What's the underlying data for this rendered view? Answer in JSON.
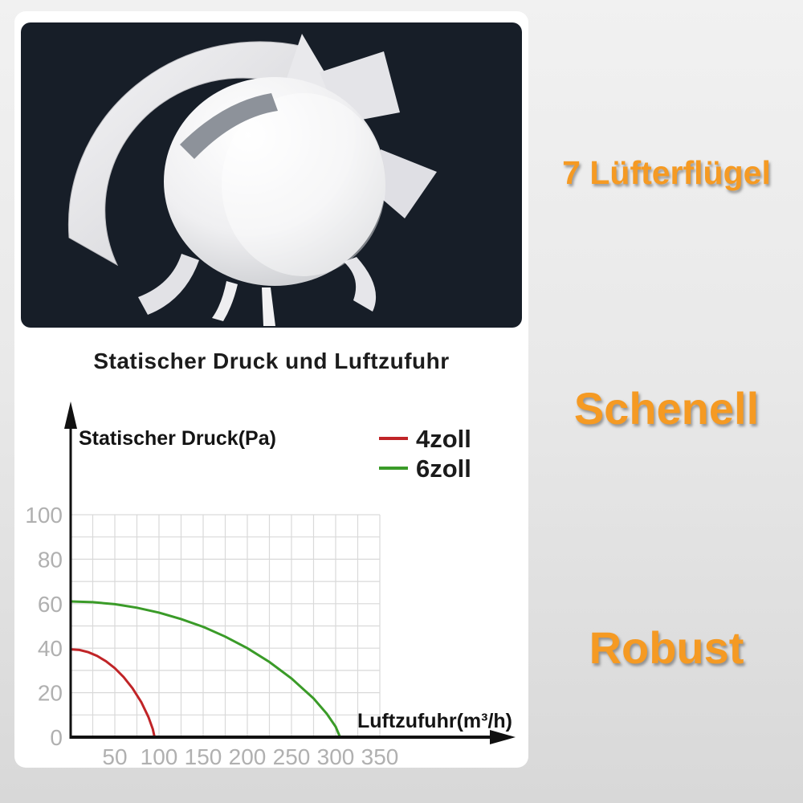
{
  "hero": {
    "panel_color": "#171e28",
    "illustration": "fan-impeller-3d-render"
  },
  "features": [
    {
      "label": "7 Lüfterflügel"
    },
    {
      "label": "Schenell"
    },
    {
      "label": "Robust"
    }
  ],
  "accent_color": "#f59a23",
  "chart_data": {
    "type": "line",
    "title": "Statischer Druck und Luftzufuhr",
    "xlabel": "Luftzufuhr(m³/h)",
    "ylabel": "Statischer Druck(Pa)",
    "xlim": [
      0,
      362
    ],
    "ylim": [
      0,
      100
    ],
    "x_ticks": [
      50,
      100,
      150,
      200,
      250,
      300,
      350
    ],
    "y_ticks": [
      0,
      20,
      40,
      60,
      80,
      100
    ],
    "grid": {
      "x_step": 25,
      "y_step": 10,
      "x_max": 350,
      "y_max": 100,
      "color": "#d9d9d9"
    },
    "legend_position": "top-right",
    "axis_color": "#111111",
    "tick_color": "#b0b0b0",
    "series": [
      {
        "name": "4zoll",
        "color": "#c02427",
        "points": [
          [
            0,
            39.5
          ],
          [
            10,
            39.2
          ],
          [
            20,
            38.2
          ],
          [
            30,
            36.5
          ],
          [
            40,
            34.1
          ],
          [
            50,
            31.0
          ],
          [
            60,
            27.0
          ],
          [
            70,
            22.0
          ],
          [
            80,
            15.7
          ],
          [
            88,
            9.1
          ],
          [
            93,
            3.6
          ],
          [
            95,
            0
          ]
        ]
      },
      {
        "name": "6zoll",
        "color": "#3a9b28",
        "points": [
          [
            0,
            61
          ],
          [
            25,
            60.7
          ],
          [
            50,
            59.8
          ],
          [
            75,
            58.2
          ],
          [
            100,
            56.0
          ],
          [
            125,
            53.1
          ],
          [
            150,
            49.6
          ],
          [
            175,
            45.2
          ],
          [
            200,
            40.0
          ],
          [
            225,
            33.8
          ],
          [
            250,
            26.4
          ],
          [
            275,
            17.4
          ],
          [
            290,
            10.5
          ],
          [
            300,
            4.7
          ],
          [
            305,
            0
          ]
        ]
      }
    ]
  }
}
